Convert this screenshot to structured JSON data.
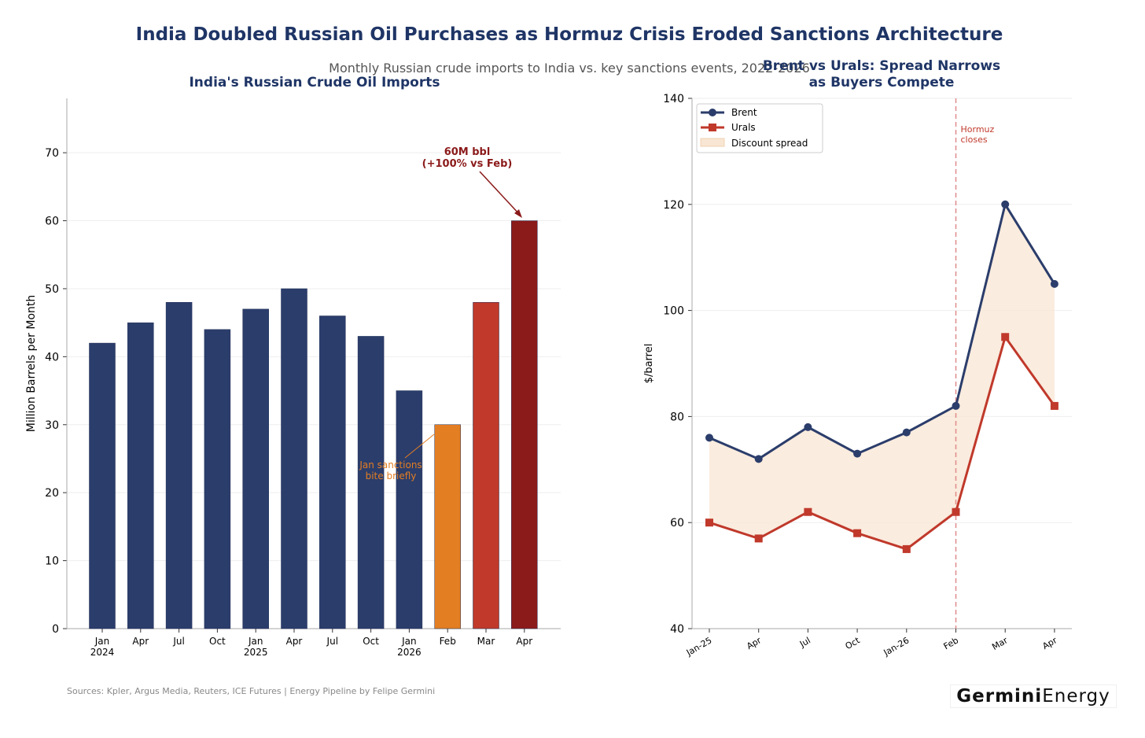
{
  "title": "India Doubled Russian Oil Purchases as Hormuz Crisis Eroded Sanctions Architecture",
  "subtitle": "Monthly Russian crude imports to India vs. key sanctions events, 2022-2026",
  "sources": "Sources: Kpler, Argus Media, Reuters, ICE Futures | Energy Pipeline by Felipe Germini",
  "logo": {
    "bold": "Germini",
    "light": "Energy"
  },
  "colors": {
    "navy": "#2b3d6b",
    "orange": "#e37e22",
    "red": "#c0392b",
    "darkred": "#8b1a1a",
    "title": "#1f3566"
  },
  "chart_data": [
    {
      "type": "bar",
      "title": "India's Russian Crude Oil Imports",
      "ylabel": "Million Barrels per Month",
      "ylim": [
        0,
        78
      ],
      "yticks": [
        0,
        10,
        20,
        30,
        40,
        50,
        60,
        70
      ],
      "categories": [
        "Jan\n2024",
        "Apr",
        "Jul",
        "Oct",
        "Jan\n2025",
        "Apr",
        "Jul",
        "Oct",
        "Jan\n2026",
        "Feb",
        "Mar",
        "Apr"
      ],
      "values": [
        42,
        45,
        48,
        44,
        47,
        50,
        46,
        43,
        35,
        30,
        48,
        60
      ],
      "bar_colors": [
        "navy",
        "navy",
        "navy",
        "navy",
        "navy",
        "navy",
        "navy",
        "navy",
        "navy",
        "orange",
        "red",
        "darkred"
      ],
      "annotations": [
        {
          "text": "60M bbl\n(+100% vs Feb)",
          "target_index": 11
        },
        {
          "text": "Jan sanctions\nbite briefly",
          "target_index": 9
        }
      ]
    },
    {
      "type": "line",
      "title": "Brent vs Urals: Spread Narrows\nas Buyers Compete",
      "ylabel": "$/barrel",
      "ylim": [
        40,
        140
      ],
      "yticks": [
        40,
        60,
        80,
        100,
        120,
        140
      ],
      "categories": [
        "Jan-25",
        "Apr",
        "Jul",
        "Oct",
        "Jan-26",
        "Feb",
        "Mar",
        "Apr"
      ],
      "series": [
        {
          "name": "Brent",
          "values": [
            76,
            72,
            78,
            73,
            77,
            82,
            120,
            105
          ]
        },
        {
          "name": "Urals",
          "values": [
            60,
            57,
            62,
            58,
            55,
            62,
            95,
            82
          ]
        }
      ],
      "fill_label": "Discount spread",
      "vline": {
        "index": 5,
        "label": "Hormuz\ncloses"
      },
      "legend": "top-left"
    }
  ]
}
